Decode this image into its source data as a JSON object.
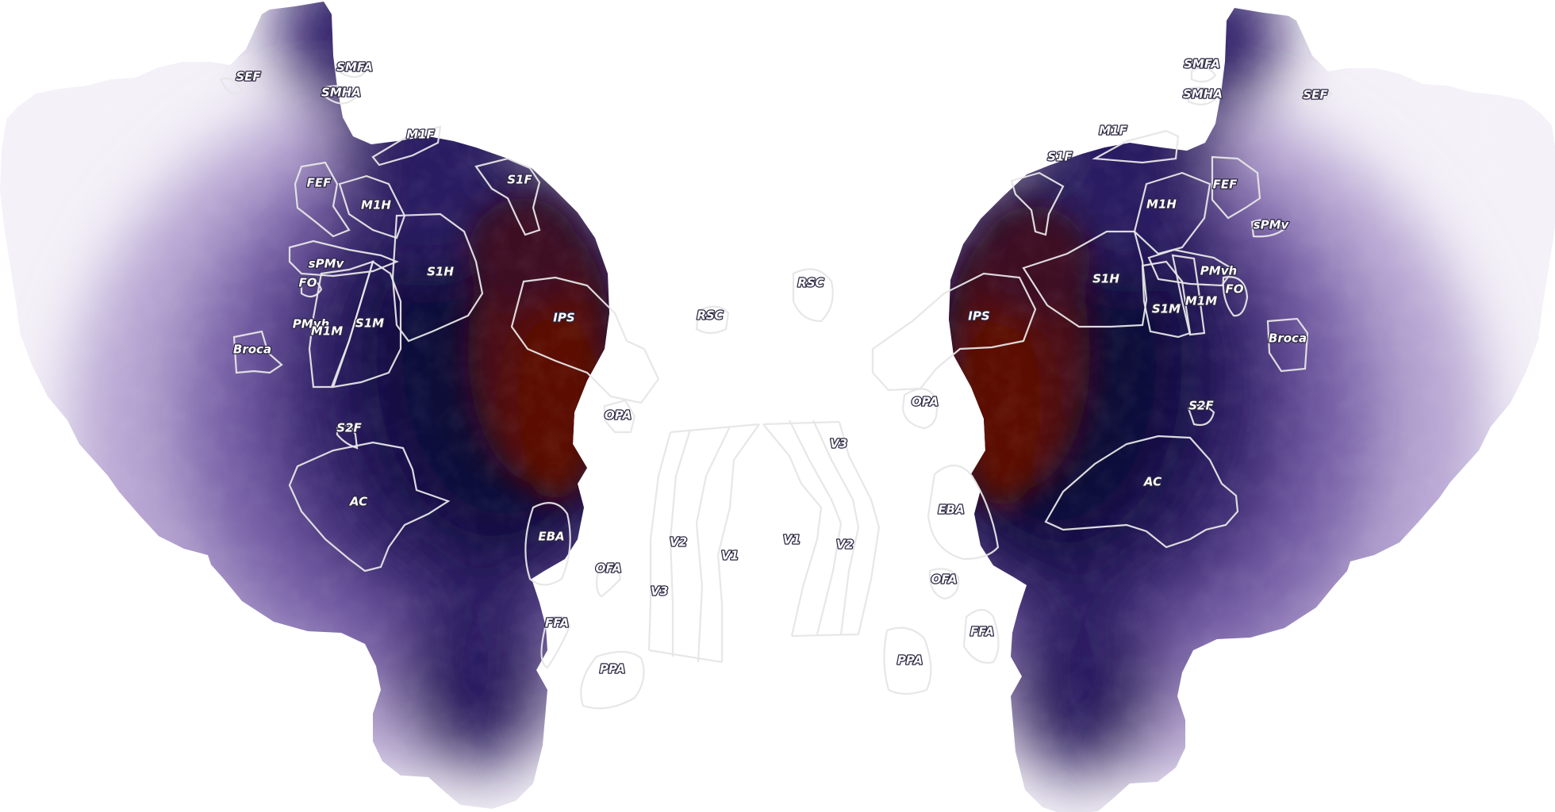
{
  "colors": {
    "background": "#ffffff",
    "low": "#f7f4fb",
    "mid_low": "#9a84c0",
    "mid": "#45307d",
    "deep": "#0d0838",
    "high": "#5a0d05",
    "roi_stroke": "#e6e6e6"
  },
  "hemispheres": [
    {
      "id": "left",
      "labels": {
        "SEF": "SEF",
        "SMFA": "SMFA",
        "SMHA": "SMHA",
        "M1F": "M1F",
        "S1F": "S1F",
        "FEF": "FEF",
        "M1H": "M1H",
        "sPMv": "sPMv",
        "FO": "FO",
        "S1H": "S1H",
        "PMvh": "PMvh",
        "M1M": "M1M",
        "S1M": "S1M",
        "Broca": "Broca",
        "IPS": "IPS",
        "RSC": "RSC",
        "OPA": "OPA",
        "S2F": "S2F",
        "AC": "AC",
        "EBA": "EBA",
        "V2": "V2",
        "V1": "V1",
        "OFA": "OFA",
        "V3": "V3",
        "FFA": "FFA",
        "PPA": "PPA"
      }
    },
    {
      "id": "right",
      "labels": {
        "SMFA": "SMFA",
        "SMHA": "SMHA",
        "SEF": "SEF",
        "M1F": "M1F",
        "S1F": "S1F",
        "FEF": "FEF",
        "M1H": "M1H",
        "sPMv": "sPMv",
        "PMvh": "PMvh",
        "FO": "FO",
        "S1H": "S1H",
        "S1M": "S1M",
        "M1M": "M1M",
        "Broca": "Broca",
        "RSC": "RSC",
        "IPS": "IPS",
        "OPA": "OPA",
        "S2F": "S2F",
        "V3": "V3",
        "AC": "AC",
        "EBA": "EBA",
        "V1": "V1",
        "V2": "V2",
        "OFA": "OFA",
        "FFA": "FFA",
        "PPA": "PPA"
      }
    }
  ]
}
